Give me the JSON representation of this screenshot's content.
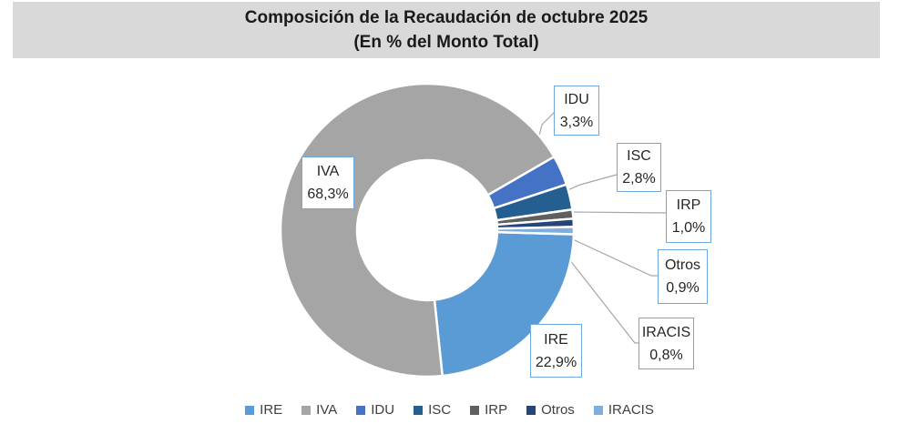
{
  "chart_data": {
    "type": "pie",
    "subtype": "donut",
    "title": "Composición de la Recaudación de octubre 2025",
    "subtitle": "(En % del Monto Total)",
    "title_background": "#D9D9D9",
    "labels": [
      "IRE",
      "IVA",
      "IDU",
      "ISC",
      "IRP",
      "Otros",
      "IRACIS"
    ],
    "values": [
      22.9,
      68.3,
      3.3,
      2.8,
      1.0,
      0.9,
      0.8
    ],
    "value_labels": [
      "22,9%",
      "68,3%",
      "3,3%",
      "2,8%",
      "1,0%",
      "0,9%",
      "0,8%"
    ],
    "colors": [
      "#5B9BD5",
      "#A5A5A5",
      "#4472C4",
      "#255E91",
      "#5F5F5F",
      "#264478",
      "#7CAFDD"
    ],
    "unit": "% del monto total",
    "first_slice_angle": 91.6,
    "hole_ratio": 0.478,
    "slice_gap_color": "#FFFFFF",
    "leader_line_color": "#A6A6A6",
    "callout_border_color": "#6FA8DC",
    "legend_position": "bottom",
    "legend": [
      "IRE",
      "IVA",
      "IDU",
      "ISC",
      "IRP",
      "Otros",
      "IRACIS"
    ]
  }
}
